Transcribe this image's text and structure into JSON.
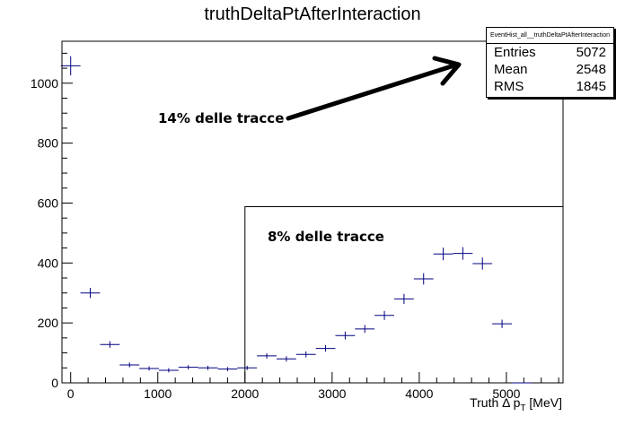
{
  "chart_data": {
    "type": "histogram",
    "title": "truthDeltaPtAfterInteraction",
    "xlabel_prefix": "Truth Δ p",
    "xlabel_sub": "T",
    "xlabel_suffix": " [MeV]",
    "ylabel": "",
    "xlim": [
      -100,
      5650
    ],
    "ylim": [
      0,
      1140
    ],
    "x_ticks": [
      0,
      1000,
      2000,
      3000,
      4000,
      5000
    ],
    "y_ticks": [
      0,
      200,
      400,
      600,
      800,
      1000
    ],
    "bin_width": 225,
    "x": [
      0,
      225,
      450,
      675,
      900,
      1125,
      1350,
      1575,
      1800,
      2025,
      2250,
      2475,
      2700,
      2925,
      3150,
      3375,
      3600,
      3825,
      4050,
      4275,
      4500,
      4725,
      4950,
      5175
    ],
    "values": [
      1058,
      300,
      128,
      60,
      48,
      42,
      52,
      50,
      46,
      50,
      90,
      80,
      95,
      115,
      158,
      180,
      225,
      280,
      347,
      430,
      432,
      398,
      197,
      0
    ],
    "errors": [
      32,
      17,
      11,
      8,
      7,
      7,
      7,
      7,
      7,
      7,
      9,
      9,
      10,
      11,
      13,
      13,
      15,
      17,
      19,
      21,
      21,
      20,
      14,
      0
    ],
    "color": "#000080",
    "annotations": {
      "arrow_label": "14% delle tracce",
      "box_label": "8% delle tracce"
    }
  },
  "stats": {
    "name": "EventHist_all__truthDeltaPtAfterInteraction",
    "entries_label": "Entries",
    "entries": "5072",
    "mean_label": "Mean",
    "mean": "2548",
    "rms_label": "RMS",
    "rms": "1845"
  }
}
